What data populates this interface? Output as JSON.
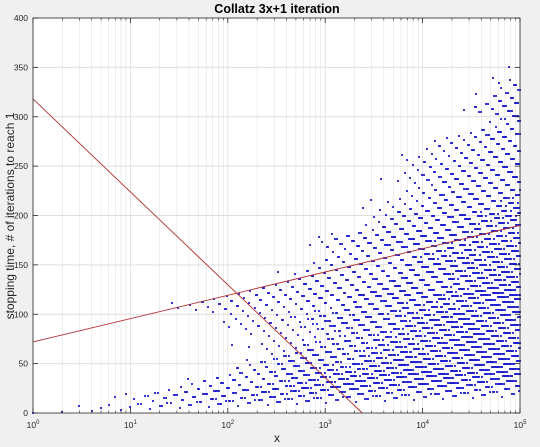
{
  "chart_data": {
    "type": "scatter",
    "title": "Collatz 3x+1 iteration",
    "xlabel": "x",
    "ylabel": "stopping time, # of iterations to reach 1",
    "x_scale": "log",
    "xlim": [
      1,
      100000
    ],
    "ylim": [
      0,
      400
    ],
    "grid": true,
    "x_ticks": [
      {
        "value": 1,
        "base": "10",
        "exp": "0"
      },
      {
        "value": 10,
        "base": "10",
        "exp": "1"
      },
      {
        "value": 100,
        "base": "10",
        "exp": "2"
      },
      {
        "value": 1000,
        "base": "10",
        "exp": "3"
      },
      {
        "value": 10000,
        "base": "10",
        "exp": "4"
      },
      {
        "value": 100000,
        "base": "10",
        "exp": "5"
      }
    ],
    "y_ticks": [
      "0",
      "50",
      "100",
      "150",
      "200",
      "250",
      "300",
      "350",
      "400"
    ],
    "series": [
      {
        "marker": "dot",
        "color": "#0000c8",
        "points": "stopping times of x = 1 … 100000"
      },
      {
        "line": true,
        "color": "#b03030",
        "x": [
          1,
          100000
        ],
        "y": [
          72,
          190
        ]
      },
      {
        "line": true,
        "color": "#b03030",
        "x": [
          1,
          2400
        ],
        "y": [
          318,
          0
        ]
      }
    ],
    "x_max_n": 100000,
    "colors": {
      "points": "#0000c8",
      "lines": "#b03030",
      "axes": "#262626",
      "grid": "#dfdfdf",
      "plot_bg": "#ffffff",
      "figure_bg": "#f0f0f0"
    }
  }
}
